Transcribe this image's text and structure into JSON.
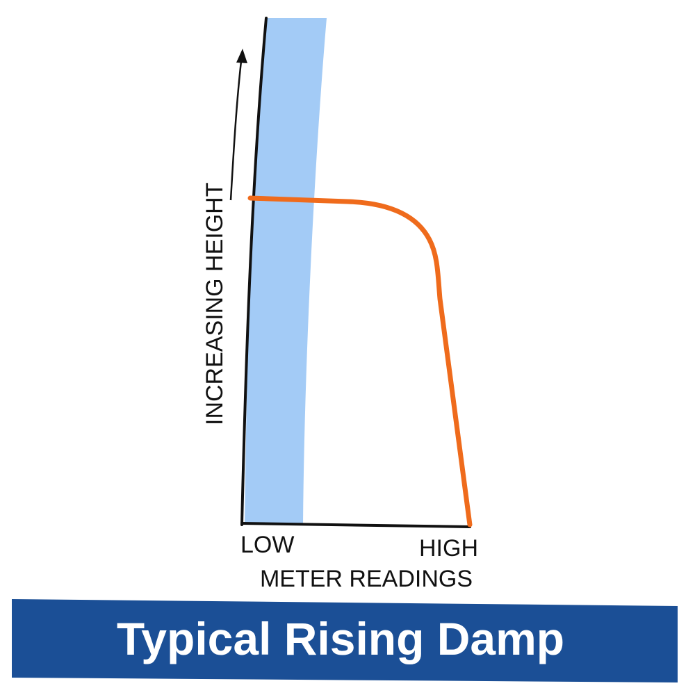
{
  "chart_data": {
    "type": "line",
    "title": "Typical Rising Damp",
    "ylabel": "INCREASING HEIGHT",
    "xlabel": "METER READINGS",
    "x_tick_labels": [
      "LOW",
      "HIGH"
    ],
    "colors": {
      "wall_band": "#a3cbf6",
      "curve": "#ef6b1c",
      "axis": "#111111",
      "banner": "#1b4f96",
      "banner_text": "#ffffff"
    }
  }
}
